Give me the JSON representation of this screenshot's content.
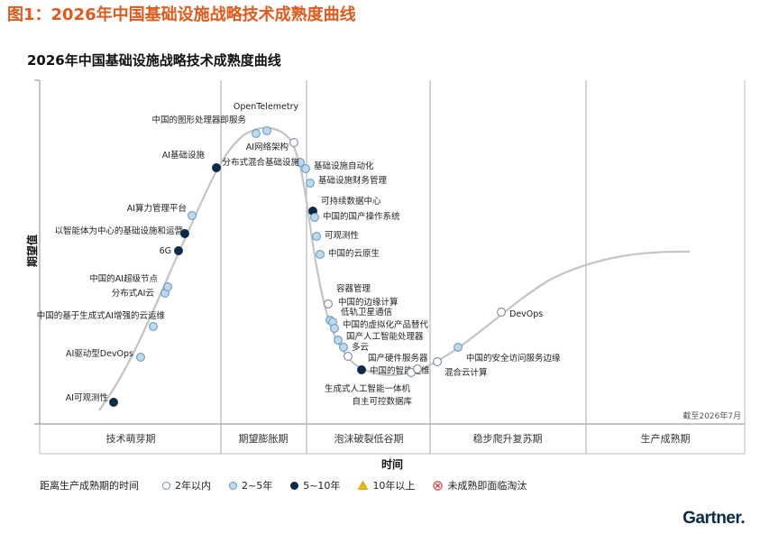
{
  "figure_caption": "图1：2026年中国基础设施战略技术成熟度曲线",
  "brand": "Gartner",
  "legend": {
    "title": "距离生产成熟期的时间",
    "items": [
      {
        "label": "2年以内",
        "fill": "#ffffff",
        "stroke": "#7a8a99"
      },
      {
        "label": "2~5年",
        "fill": "#bcd9ee",
        "stroke": "#6a9bbf"
      },
      {
        "label": "5~10年",
        "fill": "#0b2a4a",
        "stroke": "#0b2a4a"
      },
      {
        "label": "10年以上",
        "fill": "#f2b705",
        "stroke": "#c99400",
        "shape": "triangle"
      },
      {
        "label": "未成熟即面临淘汰",
        "fill": "#ffffff",
        "stroke": "#e03030",
        "shape": "cross"
      }
    ]
  },
  "chart_data": {
    "type": "scatter",
    "title": "2026年中国基础设施战略技术成熟度曲线",
    "xlabel": "时间",
    "ylabel": "期望值",
    "note": "截至2026年7月",
    "phases": [
      "技术萌芽期",
      "期望膨胀期",
      "泡沫破裂低谷期",
      "稳步爬升复苏期",
      "生产成熟期"
    ],
    "points": [
      {
        "label": "AI可观测性",
        "status": "5-10"
      },
      {
        "label": "AI驱动型DevOps",
        "status": "2-5"
      },
      {
        "label": "中国的基于生成式AI增强的云运维",
        "status": "2-5"
      },
      {
        "label": "分布式AI云",
        "status": "2-5"
      },
      {
        "label": "中国的AI超级节点",
        "status": "2-5"
      },
      {
        "label": "6G",
        "status": "5-10"
      },
      {
        "label": "以智能体为中心的基础设施和运营",
        "status": "5-10"
      },
      {
        "label": "AI算力管理平台",
        "status": "2-5"
      },
      {
        "label": "AI基础设施",
        "status": "5-10"
      },
      {
        "label": "中国的图形处理器即服务",
        "status": "2-5"
      },
      {
        "label": "OpenTelemetry",
        "status": "2-5"
      },
      {
        "label": "AI网络架构",
        "status": "lt2"
      },
      {
        "label": "分布式混合基础设施",
        "status": "2-5"
      },
      {
        "label": "基础设施自动化",
        "status": "2-5"
      },
      {
        "label": "基础设施财务管理",
        "status": "2-5"
      },
      {
        "label": "可持续数据中心",
        "status": "5-10"
      },
      {
        "label": "中国的国产操作系统",
        "status": "2-5"
      },
      {
        "label": "可观测性",
        "status": "2-5"
      },
      {
        "label": "中国的云原生",
        "status": "2-5"
      },
      {
        "label": "容器管理",
        "status": "lt2"
      },
      {
        "label": "中国的边缘计算",
        "status": "2-5"
      },
      {
        "label": "低轨卫星通信",
        "status": "2-5"
      },
      {
        "label": "中国的虚拟化产品替代",
        "status": "2-5"
      },
      {
        "label": "国产人工智能处理器",
        "status": "2-5"
      },
      {
        "label": "多云",
        "status": "2-5"
      },
      {
        "label": "国产硬件服务器",
        "status": "lt2"
      },
      {
        "label": "中国的智能运维",
        "status": "5-10"
      },
      {
        "label": "生成式人工智能一体机",
        "status": "lt2"
      },
      {
        "label": "自主可控数据库",
        "status": "lt2"
      },
      {
        "label": "混合云计算",
        "status": "lt2"
      },
      {
        "label": "中国的安全访问服务边缘",
        "status": "2-5"
      },
      {
        "label": "DevOps",
        "status": "lt2"
      }
    ]
  }
}
